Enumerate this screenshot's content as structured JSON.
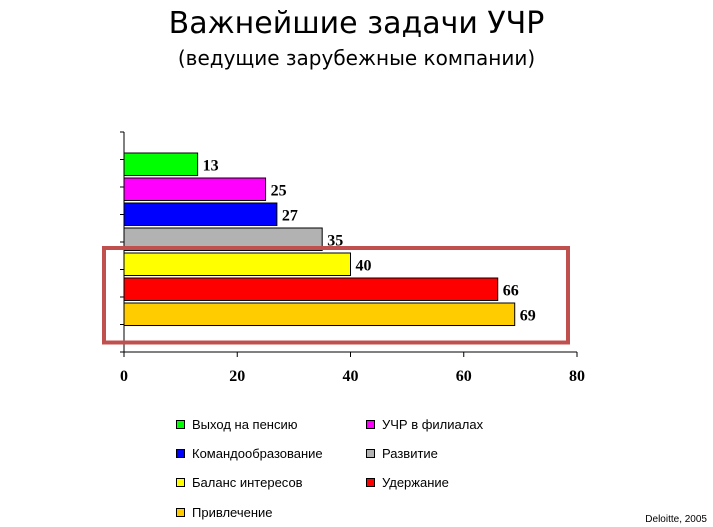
{
  "chart_data": {
    "type": "bar",
    "orientation": "horizontal",
    "title": "Важнейшие задачи УЧР",
    "subtitle": "(ведущие зарубежные компании)",
    "categories": [
      "Выход на пенсию",
      "УЧР в филиалах",
      "Командообразование",
      "Развитие",
      "Баланс интересов",
      "Удержание",
      "Привлечение"
    ],
    "values": [
      13,
      25,
      27,
      35,
      40,
      66,
      69
    ],
    "colors": [
      "#00ff00",
      "#ff00ff",
      "#0000ff",
      "#b2b2b2",
      "#ffff00",
      "#ff0000",
      "#ffcc00"
    ],
    "xlim": [
      0,
      80
    ],
    "xticks": [
      0,
      20,
      40,
      60,
      80
    ],
    "grid": false,
    "legend_position": "bottom",
    "highlight": {
      "from_category": "Баланс интересов",
      "to_category": "Привлечение",
      "color": "#c0504d"
    }
  },
  "credit": "Deloitte, 2005"
}
